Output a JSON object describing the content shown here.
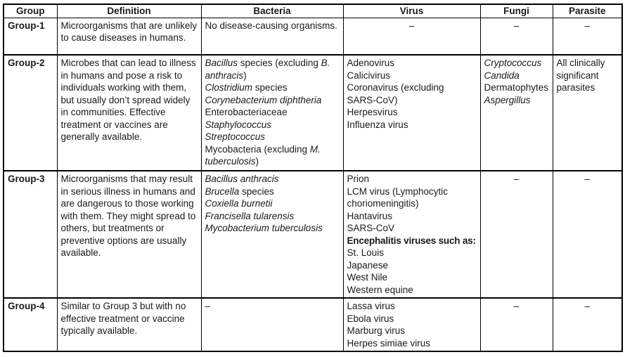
{
  "dash_char": "–",
  "table": {
    "columns": [
      {
        "key": "group",
        "label": "Group"
      },
      {
        "key": "definition",
        "label": "Definition"
      },
      {
        "key": "bacteria",
        "label": "Bacteria"
      },
      {
        "key": "virus",
        "label": "Virus"
      },
      {
        "key": "fungi",
        "label": "Fungi"
      },
      {
        "key": "parasite",
        "label": "Parasite"
      }
    ],
    "rows": [
      {
        "group": "Group-1",
        "cells": {
          "definition": {
            "kind": "para",
            "text": "Microorganisms that are unlikely to cause diseases in humans."
          },
          "bacteria": {
            "kind": "lines",
            "lines": [
              [
                {
                  "t": "No disease-causing organisms.",
                  "s": "n"
                }
              ]
            ]
          },
          "virus": {
            "kind": "dash"
          },
          "fungi": {
            "kind": "dash"
          },
          "parasite": {
            "kind": "dash"
          }
        }
      },
      {
        "group": "Group-2",
        "cells": {
          "definition": {
            "kind": "para",
            "text": "Microbes that can lead to illness in humans and pose a risk to individuals working with them, but usually don’t spread widely in communities. Effective treatment or vaccines are generally available."
          },
          "bacteria": {
            "kind": "lines",
            "lines": [
              [
                {
                  "t": "Bacillus",
                  "s": "i"
                },
                {
                  "t": " species (excluding ",
                  "s": "n"
                },
                {
                  "t": "B.",
                  "s": "i"
                }
              ],
              [
                {
                  "t": "anthracis",
                  "s": "i"
                },
                {
                  "t": ")",
                  "s": "n"
                }
              ],
              [
                {
                  "t": "Clostridium",
                  "s": "i"
                },
                {
                  "t": " species",
                  "s": "n"
                }
              ],
              [
                {
                  "t": "Corynebacterium diphtheria",
                  "s": "i"
                }
              ],
              [
                {
                  "t": "Enterobacteriaceae",
                  "s": "n"
                }
              ],
              [
                {
                  "t": "Staphylococcus",
                  "s": "i"
                }
              ],
              [
                {
                  "t": "Streptococcus",
                  "s": "i"
                }
              ],
              [
                {
                  "t": "Mycobacteria (excluding ",
                  "s": "n"
                },
                {
                  "t": "M.",
                  "s": "i"
                }
              ],
              [
                {
                  "t": "tuberculosis",
                  "s": "i"
                },
                {
                  "t": ")",
                  "s": "n"
                }
              ]
            ]
          },
          "virus": {
            "kind": "lines",
            "lines": [
              [
                {
                  "t": "Adenovirus",
                  "s": "n"
                }
              ],
              [
                {
                  "t": "Calicivirus",
                  "s": "n"
                }
              ],
              [
                {
                  "t": "Coronavirus (excluding",
                  "s": "n"
                }
              ],
              [
                {
                  "t": "SARS-CoV)",
                  "s": "n"
                }
              ],
              [
                {
                  "t": "Herpesvirus",
                  "s": "n"
                }
              ],
              [
                {
                  "t": "Influenza virus",
                  "s": "n"
                }
              ]
            ]
          },
          "fungi": {
            "kind": "lines",
            "lines": [
              [
                {
                  "t": "Cryptococcus",
                  "s": "i"
                }
              ],
              [
                {
                  "t": "Candida",
                  "s": "i"
                }
              ],
              [
                {
                  "t": "Dermatophytes",
                  "s": "n"
                }
              ],
              [
                {
                  "t": "Aspergillus",
                  "s": "i"
                }
              ]
            ]
          },
          "parasite": {
            "kind": "lines",
            "lines": [
              [
                {
                  "t": "All clinically",
                  "s": "n"
                }
              ],
              [
                {
                  "t": "significant",
                  "s": "n"
                }
              ],
              [
                {
                  "t": "parasites",
                  "s": "n"
                }
              ]
            ]
          }
        }
      },
      {
        "group": "Group-3",
        "cells": {
          "definition": {
            "kind": "para",
            "text": "Microorganisms that may result in serious illness in humans and are dangerous to those working with them. They might spread to others, but treatments or preventive options are usually available."
          },
          "bacteria": {
            "kind": "lines",
            "lines": [
              [
                {
                  "t": "Bacillus anthracis",
                  "s": "i"
                }
              ],
              [
                {
                  "t": "Brucella",
                  "s": "i"
                },
                {
                  "t": " species",
                  "s": "n"
                }
              ],
              [
                {
                  "t": "Coxiella burnetii",
                  "s": "i"
                }
              ],
              [
                {
                  "t": "Francisella tularensis",
                  "s": "i"
                }
              ],
              [
                {
                  "t": "Mycobacterium tuberculosis",
                  "s": "i"
                }
              ]
            ]
          },
          "virus": {
            "kind": "lines",
            "lines": [
              [
                {
                  "t": "Prion",
                  "s": "n"
                }
              ],
              [
                {
                  "t": "LCM virus (Lymphocytic",
                  "s": "n"
                }
              ],
              [
                {
                  "t": "choriomeningitis)",
                  "s": "n"
                }
              ],
              [
                {
                  "t": "Hantavirus",
                  "s": "n"
                }
              ],
              [
                {
                  "t": "SARS-CoV",
                  "s": "n"
                }
              ],
              [
                {
                  "t": "Encephalitis viruses such as:",
                  "s": "b"
                }
              ],
              [
                {
                  "t": "St. Louis",
                  "s": "n"
                }
              ],
              [
                {
                  "t": "Japanese",
                  "s": "n"
                }
              ],
              [
                {
                  "t": "West Nile",
                  "s": "n"
                }
              ],
              [
                {
                  "t": "Western equine",
                  "s": "n"
                }
              ]
            ]
          },
          "fungi": {
            "kind": "dash"
          },
          "parasite": {
            "kind": "dash"
          }
        }
      },
      {
        "group": "Group-4",
        "cells": {
          "definition": {
            "kind": "para",
            "text": "Similar to Group 3 but with no effective treatment or vaccine typically available."
          },
          "bacteria": {
            "kind": "lines",
            "lines": [
              [
                {
                  "t": "–",
                  "s": "n"
                }
              ]
            ]
          },
          "virus": {
            "kind": "lines",
            "lines": [
              [
                {
                  "t": "Lassa virus",
                  "s": "n"
                }
              ],
              [
                {
                  "t": "Ebola virus",
                  "s": "n"
                }
              ],
              [
                {
                  "t": "Marburg virus",
                  "s": "n"
                }
              ],
              [
                {
                  "t": "Herpes simiae virus",
                  "s": "n"
                }
              ]
            ]
          },
          "fungi": {
            "kind": "dash"
          },
          "parasite": {
            "kind": "dash"
          }
        }
      }
    ]
  }
}
